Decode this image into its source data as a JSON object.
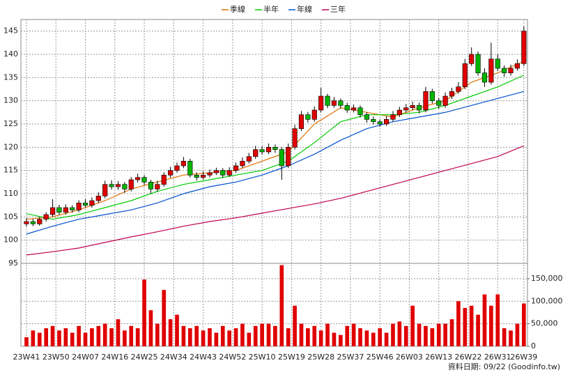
{
  "chart_data": {
    "type": "candlestick",
    "xlim": [
      -0.85,
      76.55
    ],
    "xticks": [
      {
        "value": 0,
        "label": "23W41"
      },
      {
        "value": 4.5,
        "label": "23W50"
      },
      {
        "value": 9,
        "label": "24W07"
      },
      {
        "value": 13.5,
        "label": "24W16"
      },
      {
        "value": 18,
        "label": "24W25"
      },
      {
        "value": 22.5,
        "label": "24W34"
      },
      {
        "value": 27,
        "label": "24W43"
      },
      {
        "value": 31.5,
        "label": "24W52"
      },
      {
        "value": 36,
        "label": "25W10"
      },
      {
        "value": 40.5,
        "label": "25W19"
      },
      {
        "value": 45,
        "label": "25W28"
      },
      {
        "value": 49.5,
        "label": "25W37"
      },
      {
        "value": 54,
        "label": "25W46"
      },
      {
        "value": 58.5,
        "label": "26W03"
      },
      {
        "value": 63,
        "label": "26W13"
      },
      {
        "value": 67.5,
        "label": "26W22"
      },
      {
        "value": 72,
        "label": "26W31"
      },
      {
        "value": 76,
        "label": "26W39"
      }
    ],
    "ylim": [
      95,
      147.5
    ],
    "yticks": [
      95,
      100,
      105,
      110,
      115,
      120,
      125,
      130,
      135,
      140,
      145
    ],
    "grid": true,
    "up_color": "#e00000",
    "down_color": "#00b400",
    "candles": [
      [
        103.5,
        104.8,
        102.9,
        104
      ],
      [
        104,
        104.6,
        103,
        103.5
      ],
      [
        103.5,
        105,
        103.1,
        104.5
      ],
      [
        104.5,
        106,
        104,
        105.5
      ],
      [
        105.5,
        108.8,
        105,
        107
      ],
      [
        107,
        107.6,
        105.4,
        106
      ],
      [
        106,
        107.7,
        105.5,
        107
      ],
      [
        107,
        107.5,
        105.9,
        106.5
      ],
      [
        106.5,
        108.6,
        106,
        108
      ],
      [
        108,
        108.8,
        107,
        107.5
      ],
      [
        107.5,
        109.2,
        107,
        108.5
      ],
      [
        108.5,
        110.3,
        108,
        109.5
      ],
      [
        109.5,
        112.8,
        109,
        112
      ],
      [
        112,
        112.9,
        110.9,
        111.5
      ],
      [
        111.5,
        112.7,
        110.8,
        112
      ],
      [
        112,
        112.5,
        110.2,
        111
      ],
      [
        111,
        113.6,
        110.5,
        113
      ],
      [
        113,
        114.3,
        112.4,
        113.5
      ],
      [
        113.5,
        114,
        111.8,
        112.5
      ],
      [
        112.5,
        113,
        110,
        111
      ],
      [
        111,
        112.8,
        110.4,
        112
      ],
      [
        112,
        114.6,
        111.5,
        114
      ],
      [
        114,
        115.8,
        113.4,
        115
      ],
      [
        115,
        116.7,
        114.5,
        116
      ],
      [
        116,
        117.9,
        115.5,
        117
      ],
      [
        117,
        117.5,
        113.5,
        114
      ],
      [
        114,
        114.6,
        112.8,
        113.5
      ],
      [
        113.5,
        114.8,
        113,
        114
      ],
      [
        114,
        115.2,
        113.5,
        114.5
      ],
      [
        114.5,
        115.6,
        114,
        115
      ],
      [
        115,
        115.5,
        113.4,
        114
      ],
      [
        114,
        115.7,
        113.6,
        115
      ],
      [
        115,
        116.7,
        114.5,
        116
      ],
      [
        116,
        117.8,
        115.5,
        117
      ],
      [
        117,
        118.8,
        116.5,
        118
      ],
      [
        118,
        120.3,
        117.5,
        119.5
      ],
      [
        119.5,
        120.2,
        118.4,
        119
      ],
      [
        119,
        120.8,
        118.5,
        120
      ],
      [
        120,
        120.6,
        118.8,
        119.5
      ],
      [
        119.5,
        120,
        113,
        116
      ],
      [
        116,
        120.8,
        115.5,
        120
      ],
      [
        120,
        124.8,
        119.5,
        124
      ],
      [
        124,
        127.8,
        123.5,
        127
      ],
      [
        127,
        127.6,
        125.3,
        126
      ],
      [
        126,
        128.8,
        125.5,
        128
      ],
      [
        128,
        132.8,
        127.5,
        131
      ],
      [
        131,
        131.5,
        128.4,
        129
      ],
      [
        129,
        130.8,
        128.5,
        130
      ],
      [
        130,
        130.5,
        128.3,
        129
      ],
      [
        129,
        129.6,
        127.4,
        128
      ],
      [
        128,
        129.2,
        127.5,
        128.5
      ],
      [
        128.5,
        129,
        126.4,
        127
      ],
      [
        127,
        127.5,
        125.3,
        126
      ],
      [
        126,
        126.6,
        124.9,
        125.5
      ],
      [
        125.5,
        126,
        124.4,
        125
      ],
      [
        125,
        126.7,
        124.6,
        126
      ],
      [
        126,
        127.8,
        125.5,
        127
      ],
      [
        127,
        128.7,
        126.5,
        128
      ],
      [
        128,
        129.3,
        127.5,
        128.5
      ],
      [
        128.5,
        129.8,
        128,
        129
      ],
      [
        129,
        129.6,
        127.3,
        128
      ],
      [
        128,
        133,
        127.5,
        132
      ],
      [
        132,
        132.6,
        129.4,
        130
      ],
      [
        130,
        130.6,
        128.3,
        129
      ],
      [
        129,
        131.8,
        128.5,
        131
      ],
      [
        131,
        132.8,
        130.4,
        132
      ],
      [
        132,
        134,
        131.5,
        133
      ],
      [
        133,
        139,
        132.5,
        138
      ],
      [
        138,
        141.5,
        137.5,
        140
      ],
      [
        140,
        140.6,
        135.4,
        136
      ],
      [
        136,
        137,
        133,
        134
      ],
      [
        134,
        142.5,
        133.5,
        139
      ],
      [
        139,
        140,
        136.4,
        137
      ],
      [
        137,
        137.6,
        135.2,
        136
      ],
      [
        136,
        137.8,
        135.4,
        137
      ],
      [
        137,
        138.9,
        136.5,
        138
      ],
      [
        138,
        146,
        137.5,
        145
      ]
    ],
    "series": [
      {
        "name": "季線",
        "color": "#e07000",
        "x": [
          0,
          4,
          8,
          12,
          16,
          20,
          24,
          28,
          32,
          36,
          40,
          44,
          48,
          52,
          56,
          60,
          64,
          68,
          72,
          76
        ],
        "values": [
          104.5,
          105,
          106.5,
          108.5,
          111,
          112.5,
          114,
          114.5,
          115,
          117,
          119,
          125,
          128.5,
          127.5,
          126.5,
          128.5,
          130,
          134,
          136,
          138.5
        ]
      },
      {
        "name": "半年",
        "color": "#00cc00",
        "x": [
          0,
          4,
          8,
          12,
          16,
          20,
          24,
          28,
          32,
          36,
          40,
          44,
          48,
          52,
          56,
          60,
          64,
          68,
          72,
          76
        ],
        "values": [
          105.7,
          104.5,
          105.5,
          107,
          108.5,
          110.5,
          112,
          113,
          114,
          115,
          117,
          121,
          125.5,
          127,
          127,
          127.5,
          129,
          131,
          133,
          135.5
        ]
      },
      {
        "name": "年線",
        "color": "#0050d0",
        "x": [
          0,
          4,
          8,
          12,
          16,
          20,
          24,
          28,
          32,
          36,
          40,
          44,
          48,
          52,
          56,
          60,
          64,
          68,
          72,
          76
        ],
        "values": [
          101.3,
          103,
          104.5,
          105.5,
          106.5,
          108,
          110,
          111.5,
          112.5,
          114,
          116,
          118.5,
          121.5,
          124,
          125.5,
          126.5,
          127.5,
          129,
          130.5,
          132
        ]
      },
      {
        "name": "三年",
        "color": "#c00050",
        "x": [
          0,
          4,
          8,
          12,
          16,
          20,
          24,
          28,
          32,
          36,
          40,
          44,
          48,
          52,
          56,
          60,
          64,
          68,
          72,
          76
        ],
        "values": [
          96.8,
          97.5,
          98.3,
          99.5,
          100.7,
          101.8,
          103,
          104,
          104.8,
          105.8,
          106.8,
          107.8,
          109,
          110.5,
          112,
          113.5,
          115,
          116.5,
          118,
          120.3
        ]
      }
    ],
    "volume": {
      "color": "#e00000",
      "ylim": [
        0,
        184000
      ],
      "yticks": [
        0,
        {
          "value": 50000,
          "label": "50,000"
        },
        {
          "value": 100000,
          "label": "100,000"
        },
        {
          "value": 150000,
          "label": "150,000"
        }
      ],
      "values": [
        20000,
        35000,
        30000,
        40000,
        45000,
        35000,
        40000,
        30000,
        45000,
        30000,
        40000,
        45000,
        50000,
        40000,
        60000,
        35000,
        45000,
        40000,
        148000,
        80000,
        50000,
        125000,
        60000,
        70000,
        45000,
        40000,
        45000,
        35000,
        40000,
        30000,
        45000,
        35000,
        40000,
        50000,
        30000,
        45000,
        50000,
        50000,
        45000,
        180000,
        40000,
        90000,
        50000,
        40000,
        45000,
        35000,
        50000,
        30000,
        25000,
        45000,
        50000,
        40000,
        35000,
        30000,
        40000,
        30000,
        50000,
        55000,
        45000,
        90000,
        50000,
        45000,
        40000,
        50000,
        50000,
        60000,
        100000,
        85000,
        90000,
        70000,
        115000,
        90000,
        115000,
        40000,
        35000,
        50000,
        95000
      ]
    },
    "source_note": "資料日期: 09/22 (Goodinfo.tw)"
  }
}
